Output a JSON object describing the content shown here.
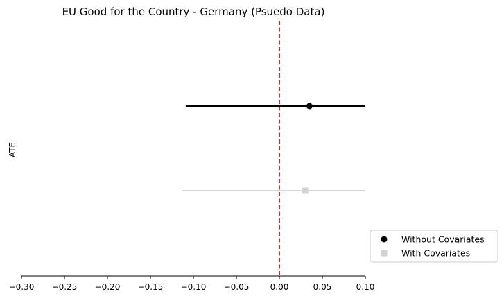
{
  "chart_data": {
    "type": "scatter",
    "title": "EU Good for the Country - Germany (Psuedo Data)",
    "xlabel": "",
    "ylabel": "ATE",
    "xlim": [
      -0.3,
      0.1
    ],
    "x_ticks": [
      -0.3,
      -0.25,
      -0.2,
      -0.15,
      -0.1,
      -0.05,
      0.0,
      0.05,
      0.1
    ],
    "x_tick_labels": [
      "−0.30",
      "−0.25",
      "−0.20",
      "−0.15",
      "−0.10",
      "−0.05",
      "0.00",
      "0.05",
      "0.10"
    ],
    "reference_line": {
      "x": 0.0,
      "color": "#ff0000",
      "style": "dashed"
    },
    "grid": false,
    "legend_position": "lower-right",
    "series": [
      {
        "name": "Without Covariates",
        "estimate": 0.035,
        "ci_low": -0.109,
        "ci_high": 0.1,
        "row": 1,
        "marker": "circle",
        "color": "#000000"
      },
      {
        "name": "With Covariates",
        "estimate": 0.03,
        "ci_low": -0.113,
        "ci_high": 0.1,
        "row": 2,
        "marker": "square",
        "color": "#d3d3d3"
      }
    ]
  }
}
